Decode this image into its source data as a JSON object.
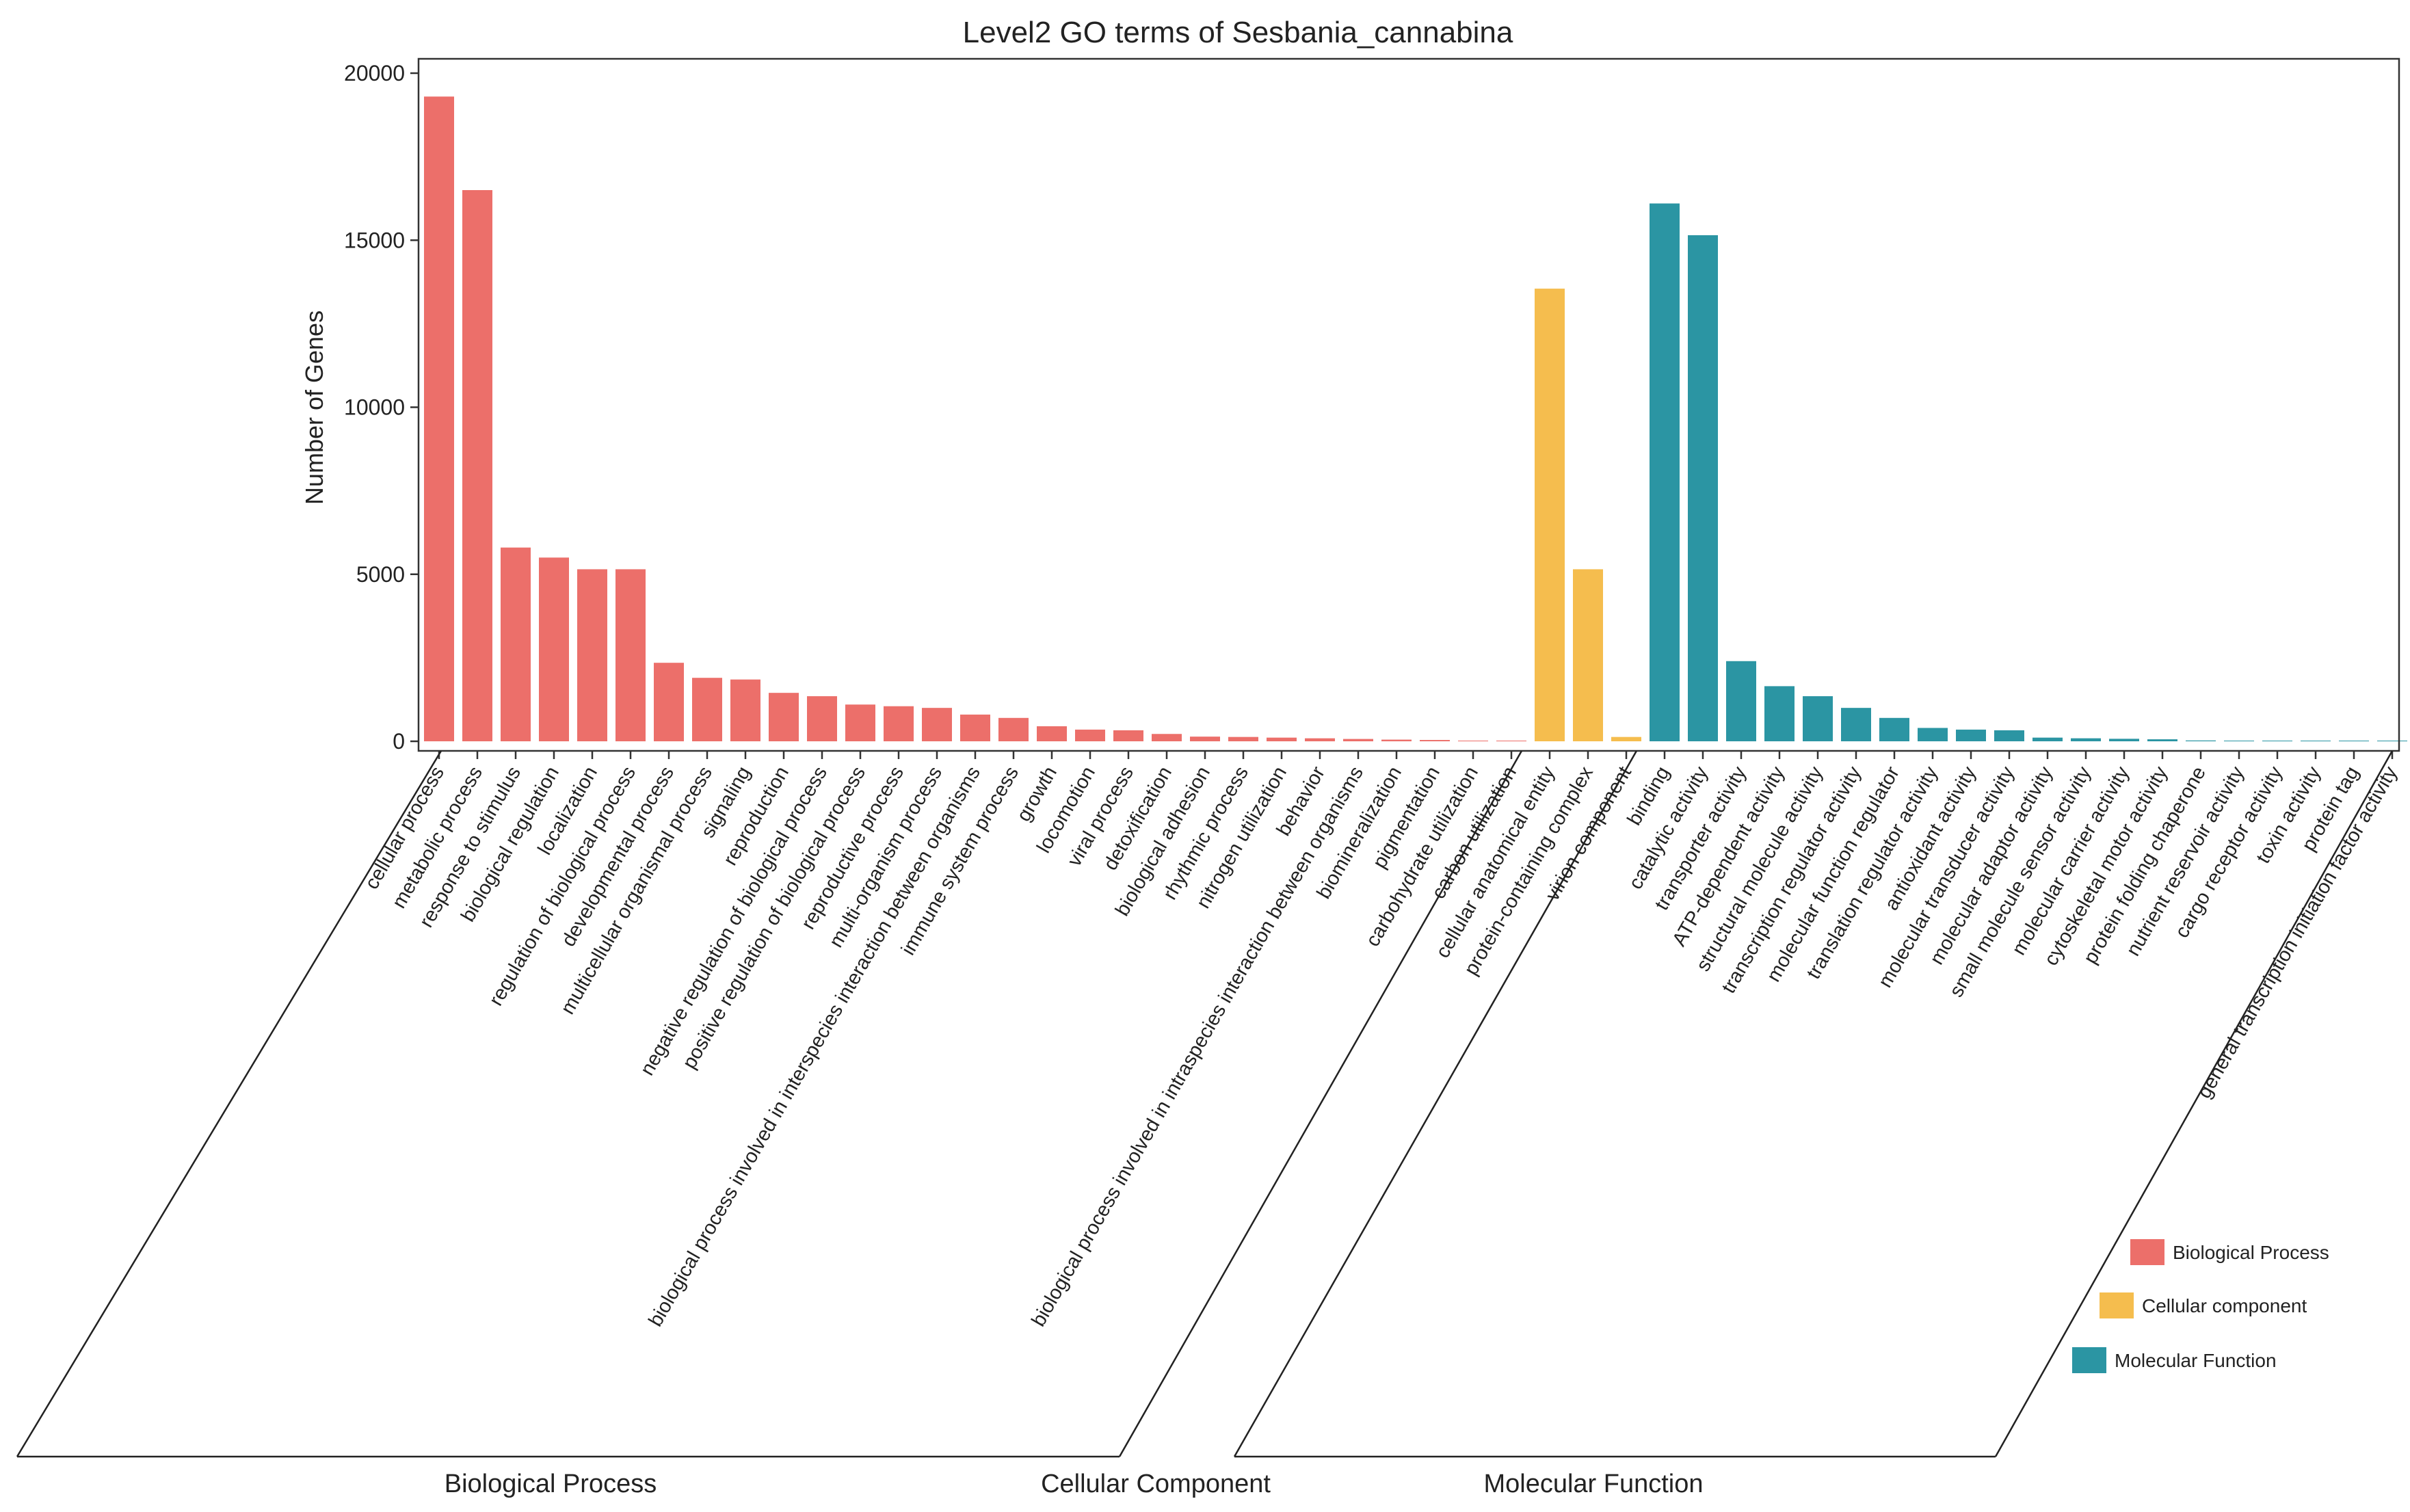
{
  "chart_data": {
    "type": "bar",
    "title": "Level2 GO terms of Sesbania_cannabina",
    "xlabel": "",
    "ylabel": "Number of Genes",
    "ylim": [
      0,
      20500
    ],
    "yticks": [
      0,
      5000,
      10000,
      15000,
      20000
    ],
    "grid": false,
    "legend_position": "bottom-right",
    "colors": {
      "Biological Process": "#EC6F6A",
      "Cellular component": "#F5BD4E",
      "Molecular Function": "#2B95A3"
    },
    "legend": [
      {
        "label": "Biological Process",
        "color": "#EC6F6A"
      },
      {
        "label": "Cellular component",
        "color": "#F5BD4E"
      },
      {
        "label": "Molecular Function",
        "color": "#2B95A3"
      }
    ],
    "group_labels": [
      "Biological Process",
      "Cellular Component",
      "Molecular Function"
    ],
    "series": [
      {
        "name": "Biological Process",
        "color": "#EC6F6A",
        "categories": [
          "cellular process",
          "metabolic process",
          "response to stimulus",
          "biological regulation",
          "localization",
          "regulation of biological process",
          "developmental process",
          "multicellular organismal process",
          "signaling",
          "reproduction",
          "negative regulation of biological process",
          "positive regulation of biological process",
          "reproductive process",
          "multi-organism process",
          "biological process involved in interspecies interaction between organisms",
          "immune system process",
          "growth",
          "locomotion",
          "viral process",
          "detoxification",
          "biological adhesion",
          "rhythmic process",
          "nitrogen utilization",
          "behavior",
          "biological process involved in intraspecies interaction between organisms",
          "biomineralization",
          "pigmentation",
          "carbohydrate utilization",
          "carbon utilization"
        ],
        "values": [
          19300,
          16500,
          5800,
          5500,
          5150,
          5150,
          2350,
          1900,
          1850,
          1450,
          1350,
          1100,
          1050,
          1000,
          800,
          700,
          450,
          350,
          330,
          220,
          140,
          130,
          110,
          90,
          70,
          50,
          40,
          20,
          15
        ]
      },
      {
        "name": "Cellular component",
        "color": "#F5BD4E",
        "categories": [
          "cellular anatomical entity",
          "protein-containing complex",
          "virion component"
        ],
        "values": [
          13550,
          5150,
          130
        ]
      },
      {
        "name": "Molecular Function",
        "color": "#2B95A3",
        "categories": [
          "binding",
          "catalytic activity",
          "transporter activity",
          "ATP-dependent activity",
          "structural molecule activity",
          "transcription regulator activity",
          "molecular function regulator",
          "translation regulator activity",
          "antioxidant activity",
          "molecular transducer activity",
          "molecular adaptor activity",
          "small molecule sensor activity",
          "molecular carrier activity",
          "cytoskeletal motor activity",
          "protein folding chaperone",
          "nutrient reservoir activity",
          "cargo receptor activity",
          "toxin activity",
          "protein tag",
          "general transcription initiation factor activity"
        ],
        "values": [
          16100,
          15150,
          2400,
          1650,
          1350,
          1000,
          700,
          400,
          350,
          330,
          110,
          90,
          75,
          60,
          25,
          20,
          15,
          12,
          10,
          8
        ]
      }
    ]
  }
}
